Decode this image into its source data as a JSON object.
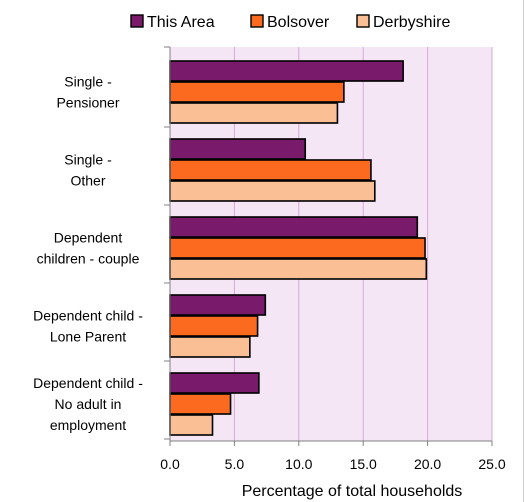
{
  "chart_data": {
    "type": "bar",
    "orientation": "horizontal",
    "categories": [
      [
        "Single -",
        "Pensioner"
      ],
      [
        "Single -",
        "Other"
      ],
      [
        "Dependent",
        "children - couple"
      ],
      [
        "Dependent child -",
        "Lone Parent"
      ],
      [
        "Dependent child -",
        "No adult in",
        "employment"
      ]
    ],
    "series": [
      {
        "name": "This Area",
        "color": "#7a1a6a",
        "values": [
          18.1,
          10.5,
          19.2,
          7.4,
          6.9
        ]
      },
      {
        "name": "Bolsover",
        "color": "#fb6a1e",
        "values": [
          13.5,
          15.6,
          19.8,
          6.8,
          4.7
        ]
      },
      {
        "name": "Derbyshire",
        "color": "#fbbf96",
        "values": [
          13.0,
          15.9,
          19.9,
          6.2,
          3.3
        ]
      }
    ],
    "xlim": [
      0,
      25
    ],
    "xticks": [
      "0.0",
      "5.0",
      "10.0",
      "15.0",
      "20.0",
      "25.0"
    ],
    "xlabel": "Percentage of total households",
    "legend_position": "top",
    "grid": true,
    "plot_background": "#f5e6f5",
    "grid_color": "#d6a8d6"
  }
}
